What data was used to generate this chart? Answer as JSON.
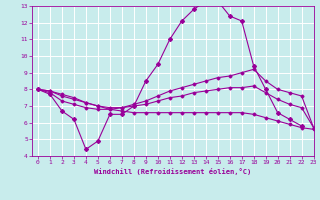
{
  "xlabel": "Windchill (Refroidissement éolien,°C)",
  "background_color": "#c8ecec",
  "grid_color": "#ffffff",
  "line_color": "#990099",
  "x_main": [
    0,
    1,
    2,
    3,
    4,
    5,
    6,
    7,
    8,
    9,
    10,
    11,
    12,
    13,
    14,
    15,
    16,
    17,
    18,
    19,
    20,
    21,
    22
  ],
  "line1_y": [
    8.0,
    7.7,
    6.7,
    6.2,
    4.4,
    4.9,
    6.5,
    6.5,
    7.0,
    8.5,
    9.5,
    11.0,
    12.1,
    12.8,
    13.3,
    13.3,
    12.4,
    12.1,
    9.4,
    8.0,
    6.6,
    6.2,
    5.8
  ],
  "x_trend": [
    0,
    1,
    2,
    3,
    4,
    5,
    6,
    7,
    8,
    9,
    10,
    11,
    12,
    13,
    14,
    15,
    16,
    17,
    18,
    19,
    20,
    21,
    22,
    23
  ],
  "line2_y": [
    8.0,
    7.8,
    7.3,
    7.1,
    6.9,
    6.8,
    6.8,
    6.9,
    7.1,
    7.3,
    7.6,
    7.9,
    8.1,
    8.3,
    8.5,
    8.7,
    8.8,
    9.0,
    9.2,
    8.5,
    8.0,
    7.8,
    7.6,
    5.7
  ],
  "line3_y": [
    8.0,
    7.9,
    7.6,
    7.4,
    7.2,
    7.0,
    6.9,
    6.9,
    7.0,
    7.1,
    7.3,
    7.5,
    7.6,
    7.8,
    7.9,
    8.0,
    8.1,
    8.1,
    8.2,
    7.8,
    7.4,
    7.1,
    6.9,
    5.7
  ],
  "line4_y": [
    8.0,
    7.9,
    7.7,
    7.5,
    7.2,
    7.0,
    6.8,
    6.7,
    6.6,
    6.6,
    6.6,
    6.6,
    6.6,
    6.6,
    6.6,
    6.6,
    6.6,
    6.6,
    6.5,
    6.3,
    6.1,
    5.9,
    5.7,
    5.6
  ],
  "ylim": [
    4,
    13
  ],
  "xlim": [
    -0.5,
    23
  ],
  "yticks": [
    4,
    5,
    6,
    7,
    8,
    9,
    10,
    11,
    12,
    13
  ],
  "xticks": [
    0,
    1,
    2,
    3,
    4,
    5,
    6,
    7,
    8,
    9,
    10,
    11,
    12,
    13,
    14,
    15,
    16,
    17,
    18,
    19,
    20,
    21,
    22,
    23
  ]
}
